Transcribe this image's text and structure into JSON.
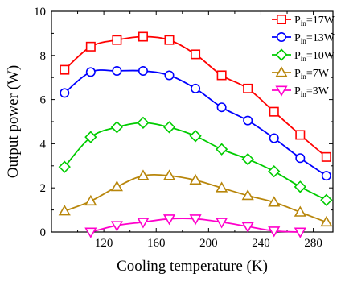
{
  "chart_data": {
    "type": "line",
    "xlabel": "Cooling temperature (K)",
    "ylabel": "Output power (W)",
    "xlim": [
      80,
      295
    ],
    "ylim": [
      0,
      10
    ],
    "xticks": [
      120,
      160,
      200,
      240,
      280
    ],
    "yticks": [
      0,
      2,
      4,
      6,
      8,
      10
    ],
    "grid": false,
    "legend_position": "top-right",
    "series": [
      {
        "name": "Pin=17W",
        "legend_main": "P",
        "legend_sub": "in",
        "legend_rest": "=17W",
        "color": "#ff0000",
        "marker": "square",
        "x": [
          90,
          110,
          130,
          150,
          170,
          190,
          210,
          230,
          250,
          270,
          290
        ],
        "y": [
          7.35,
          8.4,
          8.7,
          8.85,
          8.7,
          8.05,
          7.1,
          6.5,
          5.45,
          4.4,
          3.4
        ]
      },
      {
        "name": "Pin=13W",
        "legend_main": "P",
        "legend_sub": "in",
        "legend_rest": "=13W",
        "color": "#0000ff",
        "marker": "circle",
        "x": [
          90,
          110,
          130,
          150,
          170,
          190,
          210,
          230,
          250,
          270,
          290
        ],
        "y": [
          6.3,
          7.25,
          7.3,
          7.3,
          7.1,
          6.5,
          5.65,
          5.05,
          4.25,
          3.35,
          2.55
        ]
      },
      {
        "name": "Pin=10W",
        "legend_main": "P",
        "legend_sub": "in",
        "legend_rest": "=10W",
        "color": "#00cc00",
        "marker": "diamond",
        "x": [
          90,
          110,
          130,
          150,
          170,
          190,
          210,
          230,
          250,
          270,
          290
        ],
        "y": [
          2.95,
          4.3,
          4.75,
          4.95,
          4.75,
          4.35,
          3.75,
          3.3,
          2.75,
          2.05,
          1.45
        ]
      },
      {
        "name": "Pin=7W",
        "legend_main": "P",
        "legend_sub": "in",
        "legend_rest": "=7W",
        "color": "#b8860b",
        "marker": "triangle-up",
        "x": [
          90,
          110,
          130,
          150,
          170,
          190,
          210,
          230,
          250,
          270,
          290
        ],
        "y": [
          0.95,
          1.4,
          2.05,
          2.55,
          2.55,
          2.35,
          2.0,
          1.65,
          1.35,
          0.9,
          0.45
        ]
      },
      {
        "name": "Pin=3W",
        "legend_main": "P",
        "legend_sub": "in",
        "legend_rest": "=3W",
        "color": "#ff00cc",
        "marker": "triangle-down",
        "x": [
          110,
          130,
          150,
          170,
          190,
          210,
          230,
          250,
          270
        ],
        "y": [
          0.0,
          0.3,
          0.45,
          0.6,
          0.6,
          0.45,
          0.25,
          0.05,
          0.0
        ]
      }
    ]
  }
}
